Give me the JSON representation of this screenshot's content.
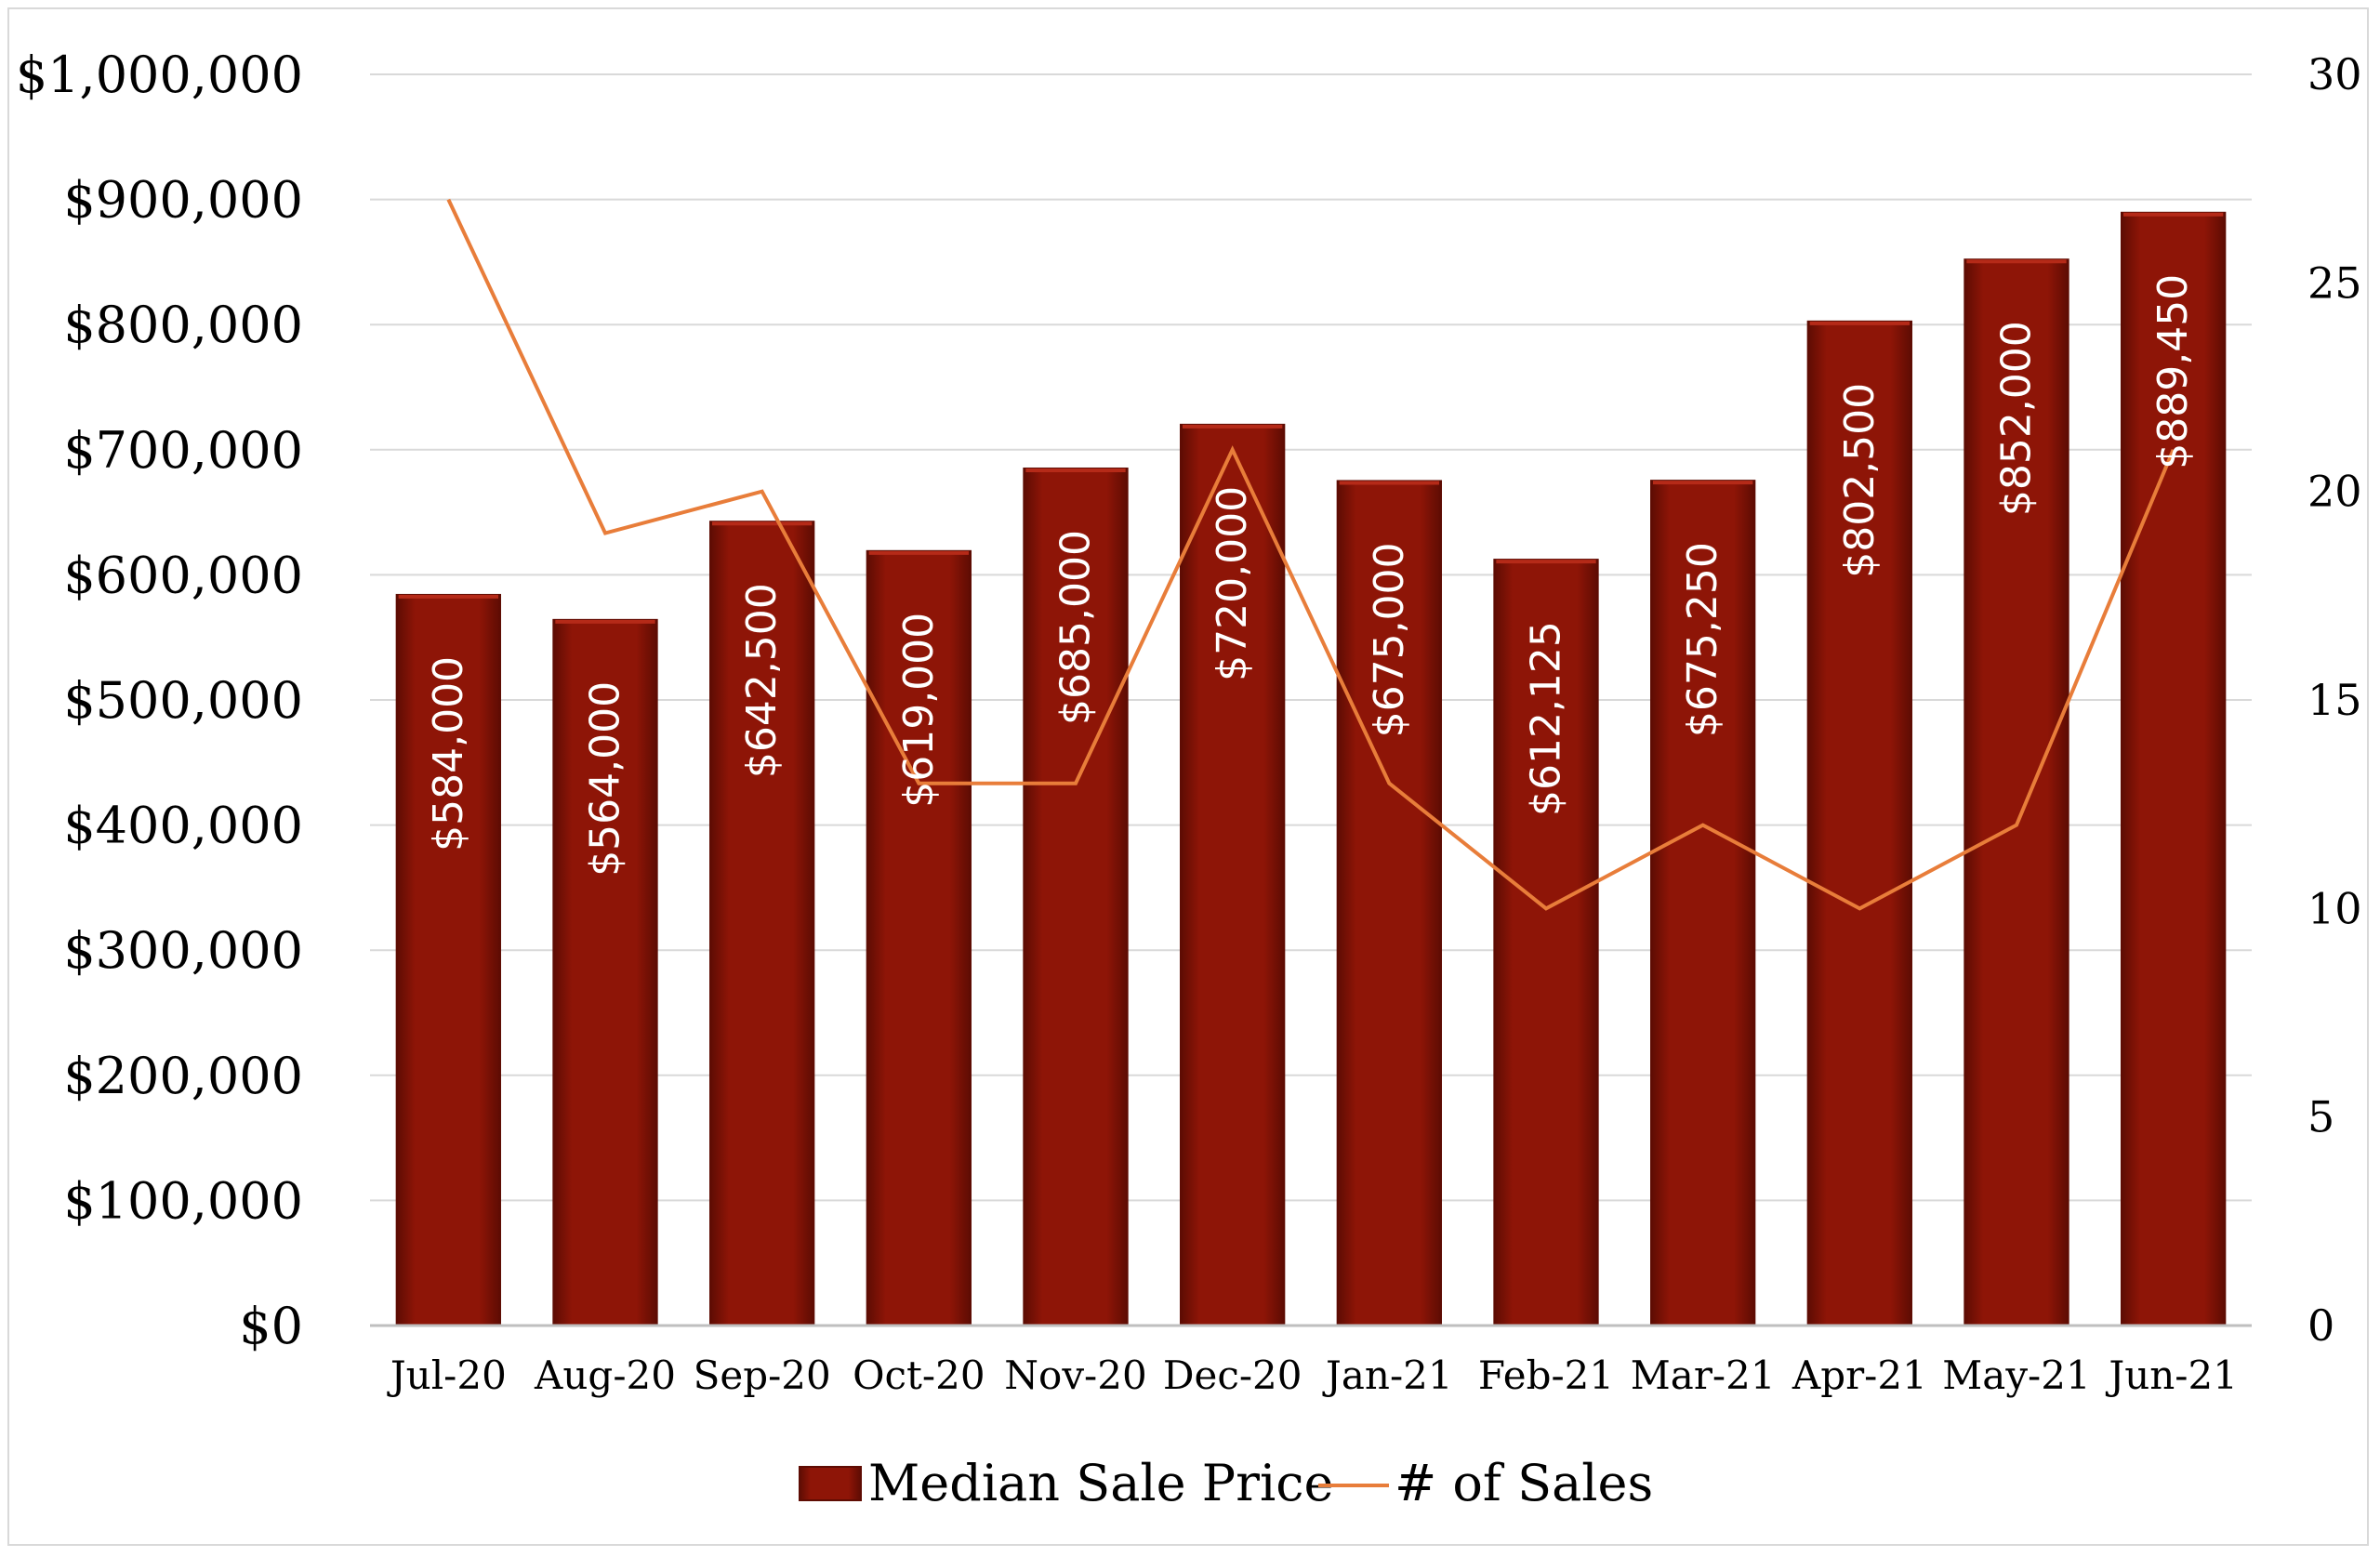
{
  "colors": {
    "bar": "#8e1507",
    "bar_light": "#b52a18",
    "bar_dark": "#5e0c03",
    "line": "#e87d3a",
    "grid": "#d9d9d9",
    "axis": "#bfbfbf"
  },
  "chart_data": {
    "type": "bar",
    "title": "",
    "xlabel": "",
    "ylabel": "",
    "categories": [
      "Jul-20",
      "Aug-20",
      "Sep-20",
      "Oct-20",
      "Nov-20",
      "Dec-20",
      "Jan-21",
      "Feb-21",
      "Mar-21",
      "Apr-21",
      "May-21",
      "Jun-21"
    ],
    "series": [
      {
        "name": "Median Sale Price",
        "type": "bar",
        "axis": "left",
        "values": [
          584000,
          564000,
          642500,
          619000,
          685000,
          720000,
          675000,
          612125,
          675250,
          802500,
          852000,
          889450
        ],
        "labels": [
          "$584,000",
          "$564,000",
          "$642,500",
          "$619,000",
          "$685,000",
          "$720,000",
          "$675,000",
          "$612,125",
          "$675,250",
          "$802,500",
          "$852,000",
          "$889,450"
        ]
      },
      {
        "name": "# of Sales",
        "type": "line",
        "axis": "right",
        "values": [
          27,
          19,
          20,
          13,
          13,
          21,
          13,
          10,
          12,
          10,
          12,
          21
        ]
      }
    ],
    "ylim": [
      0,
      1000000
    ],
    "y2lim": [
      0,
      30
    ],
    "yticks": [
      "$0",
      "$100,000",
      "$200,000",
      "$300,000",
      "$400,000",
      "$500,000",
      "$600,000",
      "$700,000",
      "$800,000",
      "$900,000",
      "$1,000,000"
    ],
    "y2ticks": [
      "0",
      "5",
      "10",
      "15",
      "20",
      "25",
      "30"
    ],
    "grid": true,
    "legend_position": "bottom"
  }
}
